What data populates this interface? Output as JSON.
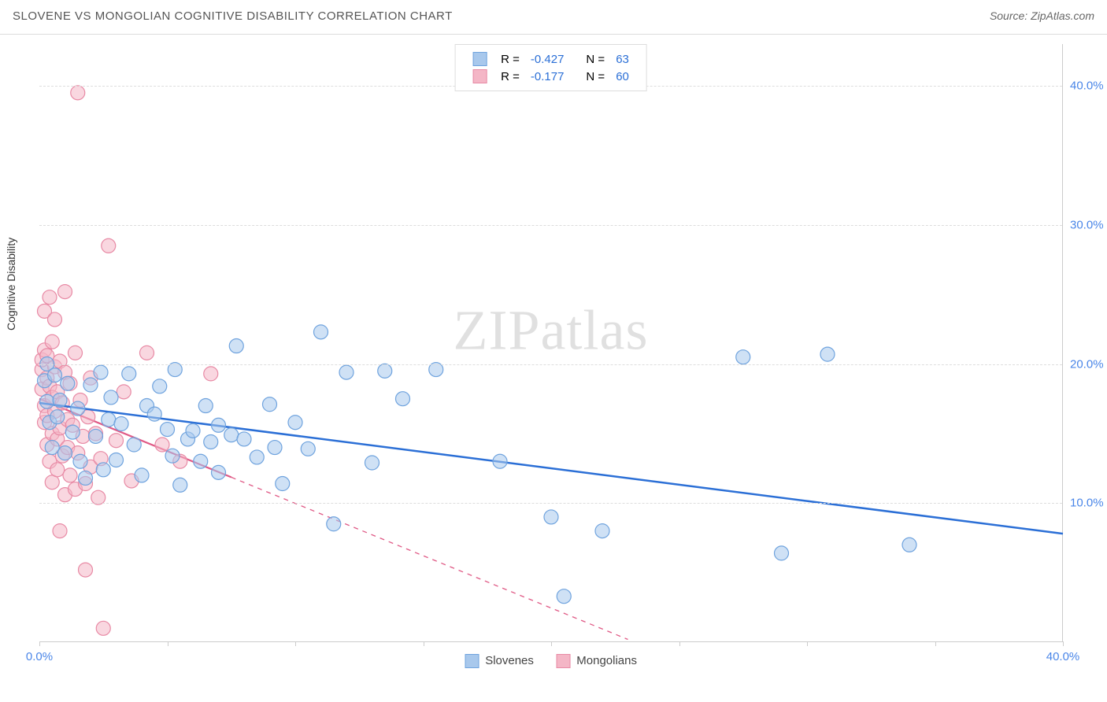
{
  "header": {
    "title": "SLOVENE VS MONGOLIAN COGNITIVE DISABILITY CORRELATION CHART",
    "source": "Source: ZipAtlas.com"
  },
  "ylabel": "Cognitive Disability",
  "watermark": {
    "bold": "ZIP",
    "light": "atlas"
  },
  "chart": {
    "type": "scatter",
    "xlim": [
      0,
      40
    ],
    "ylim": [
      0,
      43
    ],
    "x_ticks": [
      0,
      5,
      10,
      15,
      20,
      25,
      30,
      35,
      40
    ],
    "x_tick_labels_shown": {
      "0": "0.0%",
      "40": "40.0%"
    },
    "y_ticks": [
      10,
      20,
      30,
      40
    ],
    "y_tick_labels": [
      "10.0%",
      "20.0%",
      "30.0%",
      "40.0%"
    ],
    "grid_color": "#dddddd",
    "background_color": "#ffffff",
    "axis_label_color": "#4a86e8",
    "marker_radius": 9,
    "marker_stroke_width": 1.2,
    "series": [
      {
        "name": "Slovenes",
        "fill": "#a8c8ec",
        "stroke": "#6fa3de",
        "fill_opacity": 0.55,
        "R": "-0.427",
        "N": "63",
        "trend": {
          "x1": 0,
          "y1": 17.2,
          "x2": 40,
          "y2": 7.8,
          "solid_until_x": 40,
          "stroke": "#2b6fd6",
          "width": 2.5
        },
        "points": [
          [
            0.2,
            18.8
          ],
          [
            0.3,
            20.0
          ],
          [
            0.3,
            17.3
          ],
          [
            0.4,
            15.8
          ],
          [
            0.5,
            14.0
          ],
          [
            0.6,
            19.2
          ],
          [
            0.7,
            16.2
          ],
          [
            0.8,
            17.4
          ],
          [
            1.0,
            13.6
          ],
          [
            1.1,
            18.6
          ],
          [
            1.3,
            15.1
          ],
          [
            1.5,
            16.8
          ],
          [
            1.6,
            13.0
          ],
          [
            1.8,
            11.8
          ],
          [
            2.0,
            18.5
          ],
          [
            2.2,
            14.8
          ],
          [
            2.4,
            19.4
          ],
          [
            2.5,
            12.4
          ],
          [
            2.7,
            16.0
          ],
          [
            2.8,
            17.6
          ],
          [
            3.0,
            13.1
          ],
          [
            3.2,
            15.7
          ],
          [
            3.5,
            19.3
          ],
          [
            3.7,
            14.2
          ],
          [
            4.0,
            12.0
          ],
          [
            4.2,
            17.0
          ],
          [
            4.5,
            16.4
          ],
          [
            4.7,
            18.4
          ],
          [
            5.0,
            15.3
          ],
          [
            5.2,
            13.4
          ],
          [
            5.3,
            19.6
          ],
          [
            5.5,
            11.3
          ],
          [
            5.8,
            14.6
          ],
          [
            6.0,
            15.2
          ],
          [
            6.3,
            13.0
          ],
          [
            6.5,
            17.0
          ],
          [
            6.7,
            14.4
          ],
          [
            7.0,
            15.6
          ],
          [
            7.0,
            12.2
          ],
          [
            7.5,
            14.9
          ],
          [
            7.7,
            21.3
          ],
          [
            8.0,
            14.6
          ],
          [
            8.5,
            13.3
          ],
          [
            9.0,
            17.1
          ],
          [
            9.2,
            14.0
          ],
          [
            9.5,
            11.4
          ],
          [
            10.0,
            15.8
          ],
          [
            10.5,
            13.9
          ],
          [
            11.0,
            22.3
          ],
          [
            11.5,
            8.5
          ],
          [
            12.0,
            19.4
          ],
          [
            13.0,
            12.9
          ],
          [
            13.5,
            19.5
          ],
          [
            14.2,
            17.5
          ],
          [
            15.5,
            19.6
          ],
          [
            18.0,
            13.0
          ],
          [
            20.0,
            9.0
          ],
          [
            20.5,
            3.3
          ],
          [
            22.0,
            8.0
          ],
          [
            27.5,
            20.5
          ],
          [
            29.0,
            6.4
          ],
          [
            30.8,
            20.7
          ],
          [
            34.0,
            7.0
          ]
        ]
      },
      {
        "name": "Mongolians",
        "fill": "#f4b6c6",
        "stroke": "#e88aa5",
        "fill_opacity": 0.55,
        "R": "-0.177",
        "N": "60",
        "trend": {
          "x1": 0,
          "y1": 17.5,
          "x2": 23,
          "y2": 0.2,
          "solid_until_x": 7.5,
          "stroke": "#e05a86",
          "width": 2.2
        },
        "points": [
          [
            0.1,
            19.6
          ],
          [
            0.1,
            20.3
          ],
          [
            0.1,
            18.2
          ],
          [
            0.2,
            21.0
          ],
          [
            0.2,
            17.0
          ],
          [
            0.2,
            15.8
          ],
          [
            0.2,
            23.8
          ],
          [
            0.3,
            19.0
          ],
          [
            0.3,
            16.3
          ],
          [
            0.3,
            14.2
          ],
          [
            0.3,
            20.6
          ],
          [
            0.4,
            18.4
          ],
          [
            0.4,
            24.8
          ],
          [
            0.4,
            13.0
          ],
          [
            0.5,
            17.6
          ],
          [
            0.5,
            21.6
          ],
          [
            0.5,
            15.0
          ],
          [
            0.5,
            11.5
          ],
          [
            0.6,
            19.8
          ],
          [
            0.6,
            16.6
          ],
          [
            0.6,
            23.2
          ],
          [
            0.7,
            14.6
          ],
          [
            0.7,
            18.0
          ],
          [
            0.7,
            12.4
          ],
          [
            0.8,
            20.2
          ],
          [
            0.8,
            15.4
          ],
          [
            0.8,
            8.0
          ],
          [
            0.9,
            17.2
          ],
          [
            0.9,
            13.4
          ],
          [
            1.0,
            19.4
          ],
          [
            1.0,
            10.6
          ],
          [
            1.0,
            25.2
          ],
          [
            1.1,
            16.0
          ],
          [
            1.1,
            14.0
          ],
          [
            1.2,
            18.6
          ],
          [
            1.2,
            12.0
          ],
          [
            1.3,
            15.6
          ],
          [
            1.4,
            20.8
          ],
          [
            1.4,
            11.0
          ],
          [
            1.5,
            13.6
          ],
          [
            1.5,
            39.5
          ],
          [
            1.6,
            17.4
          ],
          [
            1.7,
            14.8
          ],
          [
            1.8,
            11.4
          ],
          [
            1.8,
            5.2
          ],
          [
            1.9,
            16.2
          ],
          [
            2.0,
            19.0
          ],
          [
            2.0,
            12.6
          ],
          [
            2.2,
            15.0
          ],
          [
            2.3,
            10.4
          ],
          [
            2.4,
            13.2
          ],
          [
            2.5,
            1.0
          ],
          [
            2.7,
            28.5
          ],
          [
            3.0,
            14.5
          ],
          [
            3.3,
            18.0
          ],
          [
            3.6,
            11.6
          ],
          [
            4.2,
            20.8
          ],
          [
            4.8,
            14.2
          ],
          [
            5.5,
            13.0
          ],
          [
            6.7,
            19.3
          ]
        ]
      }
    ]
  },
  "legend_top_labels": {
    "R": "R =",
    "N": "N ="
  },
  "legend_bottom": [
    {
      "label": "Slovenes",
      "fill": "#a8c8ec",
      "stroke": "#6fa3de"
    },
    {
      "label": "Mongolians",
      "fill": "#f4b6c6",
      "stroke": "#e88aa5"
    }
  ]
}
